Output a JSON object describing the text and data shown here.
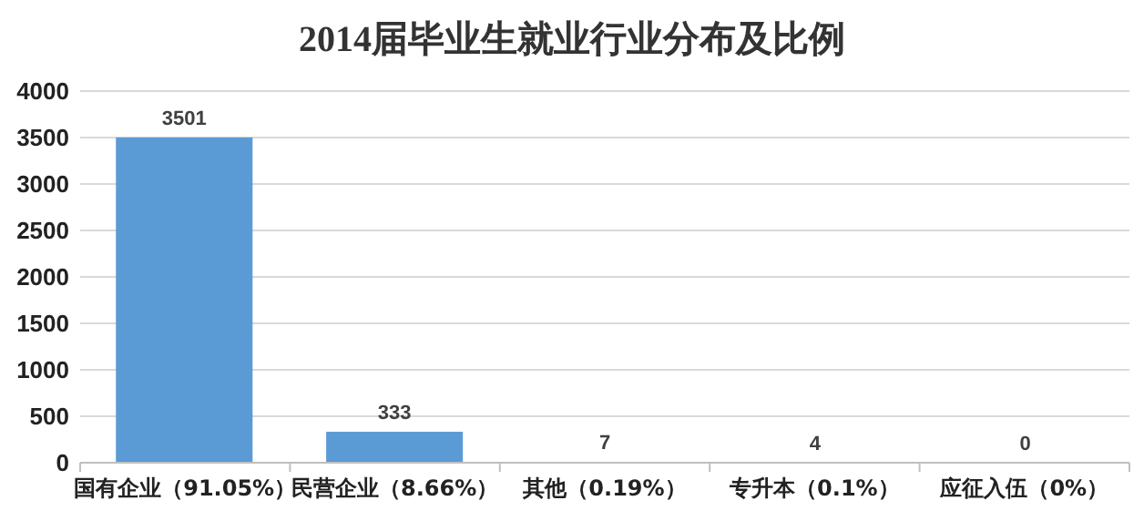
{
  "chart_data": {
    "type": "bar",
    "title": "2014届毕业生就业行业分布及比例",
    "categories": [
      "国有企业（91.05%）",
      "民营企业（8.66%）",
      "其他（0.19%）",
      "专升本（0.1%）",
      "应征入伍（0%）"
    ],
    "values": [
      3501,
      333,
      7,
      4,
      0
    ],
    "color": "#5b9bd5",
    "ylim": [
      0,
      4000
    ],
    "yticks": [
      0,
      500,
      1000,
      1500,
      2000,
      2500,
      3000,
      3500,
      4000
    ],
    "grid": "y",
    "data_labels": true
  }
}
